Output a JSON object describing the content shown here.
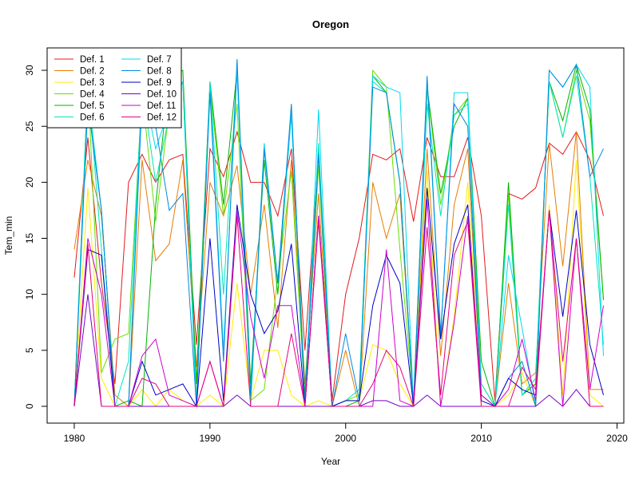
{
  "chart_data": {
    "type": "line",
    "title": "Oregon",
    "xlabel": "Year",
    "ylabel": "Tem_min",
    "xlim": [
      1978,
      2020.5
    ],
    "ylim": [
      -1.5,
      32
    ],
    "xticks": [
      1980,
      1990,
      2000,
      2010,
      2020
    ],
    "yticks": [
      0,
      5,
      10,
      15,
      20,
      25,
      30
    ],
    "legend_position": "top-left",
    "legend_columns": 2,
    "x": [
      1980,
      1981,
      1982,
      1983,
      1984,
      1985,
      1986,
      1987,
      1988,
      1989,
      1990,
      1991,
      1992,
      1993,
      1994,
      1995,
      1996,
      1997,
      1998,
      1999,
      2000,
      2001,
      2002,
      2003,
      2004,
      2005,
      2006,
      2007,
      2008,
      2009,
      2010,
      2011,
      2012,
      2013,
      2014,
      2015,
      2016,
      2017,
      2018,
      2019
    ],
    "series": [
      {
        "name": "Def. 1",
        "color": "#e31a1c",
        "values": [
          11.5,
          24.0,
          11.0,
          2.0,
          20.0,
          22.5,
          20.0,
          22.0,
          22.5,
          5.5,
          23.0,
          20.5,
          24.5,
          20.0,
          20.0,
          17.0,
          23.0,
          5.0,
          22.5,
          0.5,
          10.0,
          15.0,
          22.5,
          22.0,
          23.0,
          16.5,
          24.0,
          20.5,
          20.5,
          24.0,
          17.0,
          0.5,
          19.0,
          18.5,
          19.5,
          23.5,
          22.5,
          24.5,
          22.0,
          17.0
        ]
      },
      {
        "name": "Def. 2",
        "color": "#e67e00",
        "values": [
          14.0,
          22.0,
          17.0,
          1.0,
          0.0,
          22.0,
          13.0,
          14.5,
          22.0,
          3.5,
          20.0,
          17.0,
          21.5,
          10.0,
          18.0,
          7.0,
          22.0,
          2.0,
          19.0,
          0.0,
          5.0,
          0.0,
          20.0,
          15.0,
          19.0,
          0.0,
          23.0,
          4.5,
          18.0,
          23.0,
          1.0,
          0.0,
          11.0,
          2.0,
          3.0,
          23.5,
          12.5,
          24.5,
          1.5,
          1.5
        ]
      },
      {
        "name": "Def. 3",
        "color": "#ffee00",
        "values": [
          0.0,
          19.5,
          2.5,
          0.0,
          0.0,
          1.5,
          0.0,
          1.5,
          0.5,
          0.0,
          1.0,
          0.0,
          11.0,
          0.5,
          5.0,
          5.0,
          1.0,
          0.0,
          0.5,
          0.0,
          0.5,
          0.5,
          5.5,
          5.0,
          2.0,
          0.0,
          21.0,
          0.0,
          8.0,
          20.0,
          0.0,
          0.0,
          1.0,
          3.0,
          0.0,
          18.0,
          1.0,
          22.0,
          1.0,
          0.0
        ]
      },
      {
        "name": "Def. 4",
        "color": "#66e000",
        "values": [
          0.0,
          29.0,
          3.0,
          6.0,
          6.5,
          28.0,
          16.5,
          26.5,
          29.0,
          0.5,
          28.5,
          17.0,
          27.0,
          0.5,
          1.5,
          11.5,
          21.0,
          0.5,
          21.5,
          0.0,
          0.5,
          1.0,
          30.0,
          28.5,
          14.0,
          0.5,
          28.5,
          18.0,
          26.0,
          27.5,
          2.0,
          0.0,
          19.0,
          1.0,
          2.0,
          29.0,
          24.0,
          30.0,
          25.5,
          9.5
        ]
      },
      {
        "name": "Def. 5",
        "color": "#00b300",
        "values": [
          0.0,
          28.0,
          17.5,
          0.0,
          0.5,
          0.0,
          18.0,
          29.5,
          30.0,
          2.0,
          29.0,
          18.0,
          30.0,
          2.0,
          22.0,
          10.0,
          26.5,
          1.0,
          23.0,
          0.0,
          0.0,
          0.5,
          29.5,
          28.0,
          20.0,
          0.0,
          28.5,
          19.0,
          25.0,
          27.5,
          4.0,
          0.0,
          20.0,
          1.0,
          2.0,
          29.0,
          25.5,
          30.5,
          26.5,
          9.5
        ]
      },
      {
        "name": "Def. 6",
        "color": "#00e5bf",
        "values": [
          0.0,
          29.0,
          14.0,
          0.0,
          4.0,
          28.5,
          20.0,
          26.0,
          29.0,
          0.0,
          29.0,
          10.0,
          30.0,
          0.0,
          23.0,
          11.0,
          26.5,
          0.0,
          23.5,
          0.0,
          0.5,
          1.5,
          29.0,
          28.0,
          20.0,
          0.0,
          27.0,
          17.0,
          26.0,
          27.0,
          2.0,
          0.0,
          18.0,
          1.0,
          2.5,
          29.0,
          24.0,
          29.5,
          20.5,
          5.5
        ]
      },
      {
        "name": "Def. 7",
        "color": "#00d9f0",
        "values": [
          0.0,
          28.0,
          17.5,
          0.0,
          0.0,
          29.0,
          23.0,
          26.5,
          29.0,
          0.0,
          28.5,
          5.0,
          30.0,
          1.0,
          23.5,
          11.0,
          26.0,
          0.0,
          26.5,
          0.0,
          0.0,
          0.0,
          29.5,
          28.5,
          28.0,
          0.0,
          29.0,
          6.0,
          28.0,
          28.0,
          1.0,
          0.0,
          13.5,
          7.0,
          0.0,
          30.0,
          28.5,
          30.5,
          28.5,
          4.5
        ]
      },
      {
        "name": "Def. 8",
        "color": "#0088e0",
        "values": [
          0.0,
          27.0,
          17.5,
          0.0,
          0.0,
          27.5,
          25.0,
          17.5,
          19.0,
          0.0,
          28.0,
          4.0,
          31.0,
          1.0,
          23.0,
          11.0,
          27.0,
          0.0,
          22.5,
          0.0,
          6.5,
          0.5,
          28.5,
          28.0,
          20.0,
          0.0,
          29.5,
          6.5,
          27.0,
          25.0,
          1.0,
          0.0,
          2.5,
          4.0,
          0.0,
          30.0,
          28.5,
          30.5,
          20.5,
          23.0
        ]
      },
      {
        "name": "Def. 9",
        "color": "#0000c8",
        "values": [
          0.0,
          14.0,
          13.5,
          0.0,
          0.0,
          4.0,
          1.0,
          1.5,
          2.0,
          0.0,
          15.0,
          0.5,
          18.0,
          10.0,
          6.5,
          8.5,
          14.5,
          0.0,
          17.0,
          0.0,
          0.5,
          0.5,
          9.0,
          13.5,
          11.0,
          0.0,
          19.5,
          6.0,
          14.5,
          18.0,
          0.5,
          0.0,
          2.5,
          1.5,
          1.0,
          17.5,
          8.0,
          17.5,
          5.5,
          1.0
        ]
      },
      {
        "name": "Def. 10",
        "color": "#7700cc",
        "values": [
          0.0,
          10.0,
          0.0,
          0.0,
          0.0,
          0.0,
          0.0,
          0.0,
          0.0,
          0.0,
          0.0,
          0.0,
          1.0,
          0.0,
          0.0,
          0.0,
          0.0,
          0.0,
          0.0,
          0.0,
          0.0,
          0.0,
          0.5,
          0.5,
          0.0,
          0.0,
          1.0,
          0.0,
          0.0,
          0.0,
          0.0,
          0.0,
          0.0,
          0.0,
          0.0,
          1.0,
          0.0,
          1.5,
          0.0,
          0.0
        ]
      },
      {
        "name": "Def. 11",
        "color": "#cc00cc",
        "values": [
          0.0,
          15.0,
          10.0,
          0.0,
          0.0,
          4.5,
          6.0,
          1.0,
          0.5,
          0.0,
          4.0,
          0.0,
          17.5,
          8.0,
          2.5,
          9.0,
          9.0,
          0.0,
          17.0,
          0.0,
          0.0,
          0.0,
          0.0,
          14.0,
          0.5,
          0.0,
          18.5,
          0.0,
          7.5,
          17.0,
          1.0,
          0.0,
          1.5,
          6.0,
          0.5,
          17.5,
          0.0,
          15.0,
          1.5,
          9.0
        ]
      },
      {
        "name": "Def. 12",
        "color": "#e6007e",
        "values": [
          0.0,
          14.5,
          0.0,
          0.0,
          0.0,
          2.5,
          2.0,
          0.0,
          0.0,
          0.0,
          4.0,
          0.0,
          17.0,
          0.0,
          0.0,
          0.0,
          6.5,
          0.0,
          16.5,
          0.0,
          0.0,
          0.0,
          2.0,
          5.0,
          3.5,
          0.0,
          16.0,
          1.0,
          13.5,
          16.5,
          0.0,
          0.0,
          0.0,
          3.5,
          1.5,
          17.5,
          4.0,
          15.0,
          0.0,
          0.0
        ]
      }
    ]
  }
}
